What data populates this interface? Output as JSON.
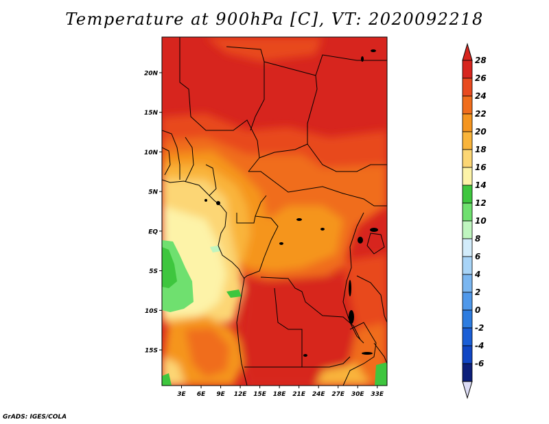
{
  "title": "Temperature at 900hPa [C], VT: 2020092218",
  "credit": "GrADS: IGES/COLA",
  "map": {
    "lon_range": [
      0,
      34.5
    ],
    "lat_range": [
      -19.5,
      24.5
    ],
    "lat_ticks": [
      {
        "value": 20,
        "label": "20N"
      },
      {
        "value": 15,
        "label": "15N"
      },
      {
        "value": 10,
        "label": "10N"
      },
      {
        "value": 5,
        "label": "5N"
      },
      {
        "value": 0,
        "label": "EQ"
      },
      {
        "value": -5,
        "label": "5S"
      },
      {
        "value": -10,
        "label": "10S"
      },
      {
        "value": -15,
        "label": "15S"
      }
    ],
    "lon_ticks": [
      {
        "value": 3,
        "label": "3E"
      },
      {
        "value": 6,
        "label": "6E"
      },
      {
        "value": 9,
        "label": "9E"
      },
      {
        "value": 12,
        "label": "12E"
      },
      {
        "value": 15,
        "label": "15E"
      },
      {
        "value": 18,
        "label": "18E"
      },
      {
        "value": 21,
        "label": "21E"
      },
      {
        "value": 24,
        "label": "24E"
      },
      {
        "value": 27,
        "label": "27E"
      },
      {
        "value": 30,
        "label": "30E"
      },
      {
        "value": 33,
        "label": "33E"
      }
    ]
  },
  "colorbar": {
    "levels": [
      {
        "label": "28",
        "color": "#d7251e"
      },
      {
        "label": "26",
        "color": "#e84a1f"
      },
      {
        "label": "24",
        "color": "#f06d1c"
      },
      {
        "label": "22",
        "color": "#f5951f"
      },
      {
        "label": "20",
        "color": "#f9b43a"
      },
      {
        "label": "18",
        "color": "#fcd674"
      },
      {
        "label": "16",
        "color": "#fdf3a8"
      },
      {
        "label": "14",
        "color": "#3ec63e"
      },
      {
        "label": "12",
        "color": "#6fe06f"
      },
      {
        "label": "10",
        "color": "#bff5bf"
      },
      {
        "label": "8",
        "color": "#d2ecfb"
      },
      {
        "label": "6",
        "color": "#a8d4f7"
      },
      {
        "label": "4",
        "color": "#7ab6f0"
      },
      {
        "label": "2",
        "color": "#4f98ea"
      },
      {
        "label": "0",
        "color": "#2d7ce0"
      },
      {
        "label": "-2",
        "color": "#1a5ed6"
      },
      {
        "label": "-4",
        "color": "#1046c4"
      },
      {
        "label": "-6",
        "color": "#0c1f7a"
      }
    ],
    "top_color": "#d7251e",
    "bottom_color": "#dcdcf5"
  }
}
